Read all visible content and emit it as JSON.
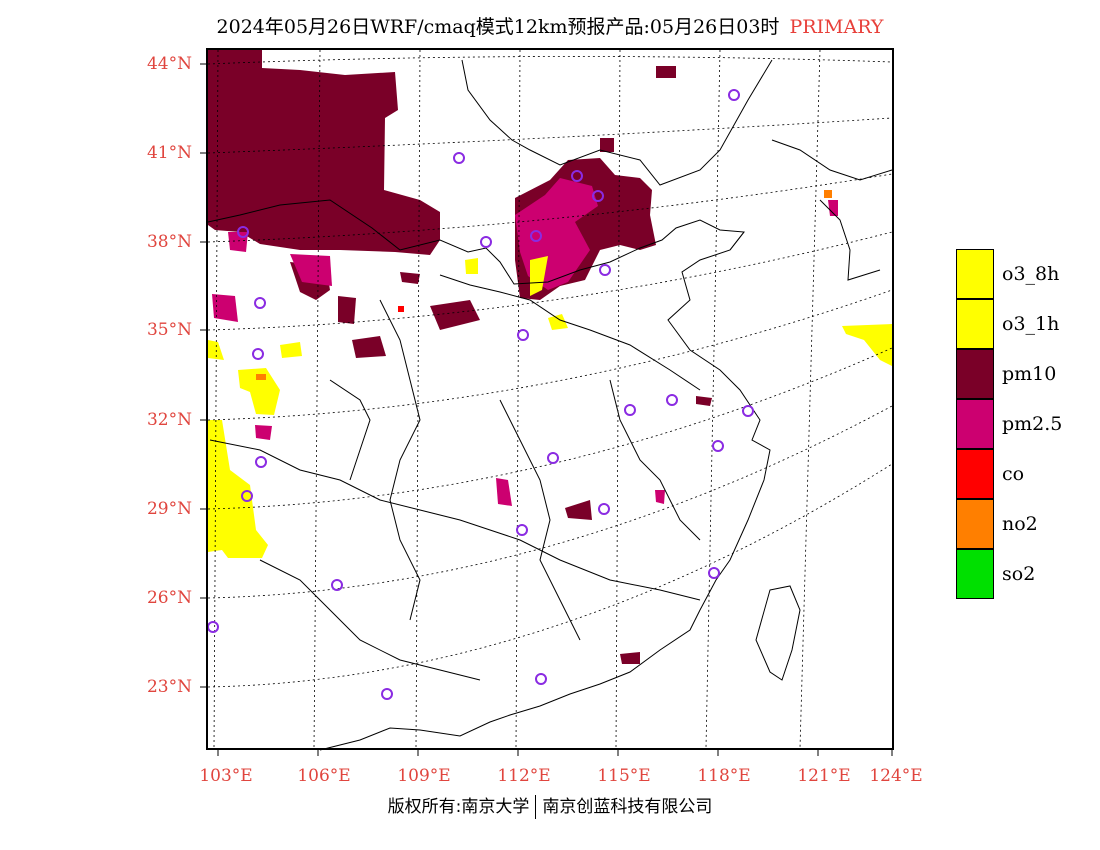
{
  "title": {
    "text": "2024年05月26日WRF/cmaq模式12km预报产品:05月26日03时",
    "tag": "PRIMARY"
  },
  "lat_labels": [
    "44°N",
    "41°N",
    "38°N",
    "35°N",
    "32°N",
    "29°N",
    "26°N",
    "23°N"
  ],
  "lon_labels": [
    "103°E",
    "106°E",
    "109°E",
    "112°E",
    "115°E",
    "118°E",
    "121°E",
    "124°E"
  ],
  "legend": [
    {
      "label": "o3_8h",
      "color": "#ffff00"
    },
    {
      "label": "o3_1h",
      "color": "#ffff00"
    },
    {
      "label": "pm10",
      "color": "#7a0028"
    },
    {
      "label": "pm2.5",
      "color": "#cc0070"
    },
    {
      "label": "co",
      "color": "#ff0000"
    },
    {
      "label": "no2",
      "color": "#ff7f00"
    },
    {
      "label": "so2",
      "color": "#00e000"
    }
  ],
  "copyright": {
    "left": "版权所有:南京大学",
    "right": "南京创蓝科技有限公司"
  },
  "colors": {
    "label_red": "#e0453e",
    "marker_purple": "#8a2be2"
  }
}
